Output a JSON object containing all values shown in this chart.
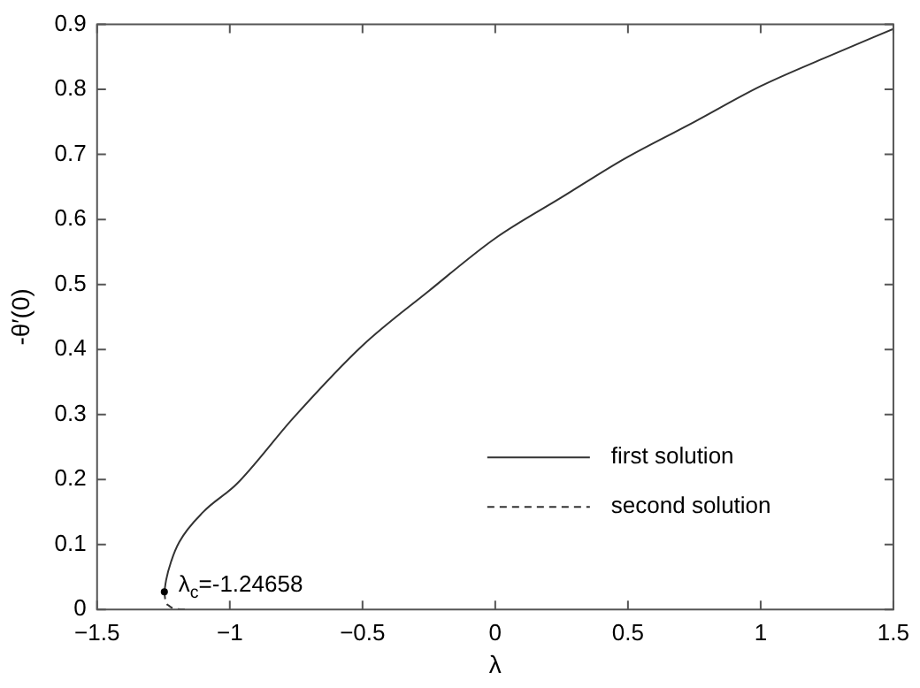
{
  "chart_data": {
    "type": "line",
    "xlabel": "λ",
    "ylabel": "-θ′(0)",
    "xlim": [
      -1.5,
      1.5
    ],
    "ylim": [
      0,
      0.9
    ],
    "xticks": [
      -1.5,
      -1,
      -0.5,
      0,
      0.5,
      1,
      1.5
    ],
    "yticks": [
      0,
      0.1,
      0.2,
      0.3,
      0.4,
      0.5,
      0.6,
      0.7,
      0.8,
      0.9
    ],
    "grid": false,
    "legend": "bottom right",
    "marker": "none",
    "series": [
      {
        "name": "first solution",
        "color": "#333333",
        "line_style": "solid",
        "x": [
          -1.24658,
          -1.24,
          -1.22,
          -1.19,
          -1.1,
          -0.974,
          -0.76,
          -0.5,
          -0.25,
          0,
          0.25,
          0.485,
          0.75,
          1,
          1.25,
          1.5
        ],
        "values": [
          0.027,
          0.045,
          0.075,
          0.104,
          0.15,
          0.193,
          0.295,
          0.406,
          0.49,
          0.571,
          0.634,
          0.693,
          0.75,
          0.805,
          0.85,
          0.893
        ]
      },
      {
        "name": "second solution",
        "color": "#333333",
        "line_style": "dashed",
        "x": [
          -1.24658,
          -1.243,
          -1.23,
          -1.2,
          -1.16
        ],
        "values": [
          0.027,
          0.015,
          0.006,
          0.001,
          0
        ]
      }
    ],
    "annotations": [
      {
        "text": "λ$_{c}$=-1.24658",
        "x": -1.24658,
        "y": 0.027
      }
    ]
  }
}
